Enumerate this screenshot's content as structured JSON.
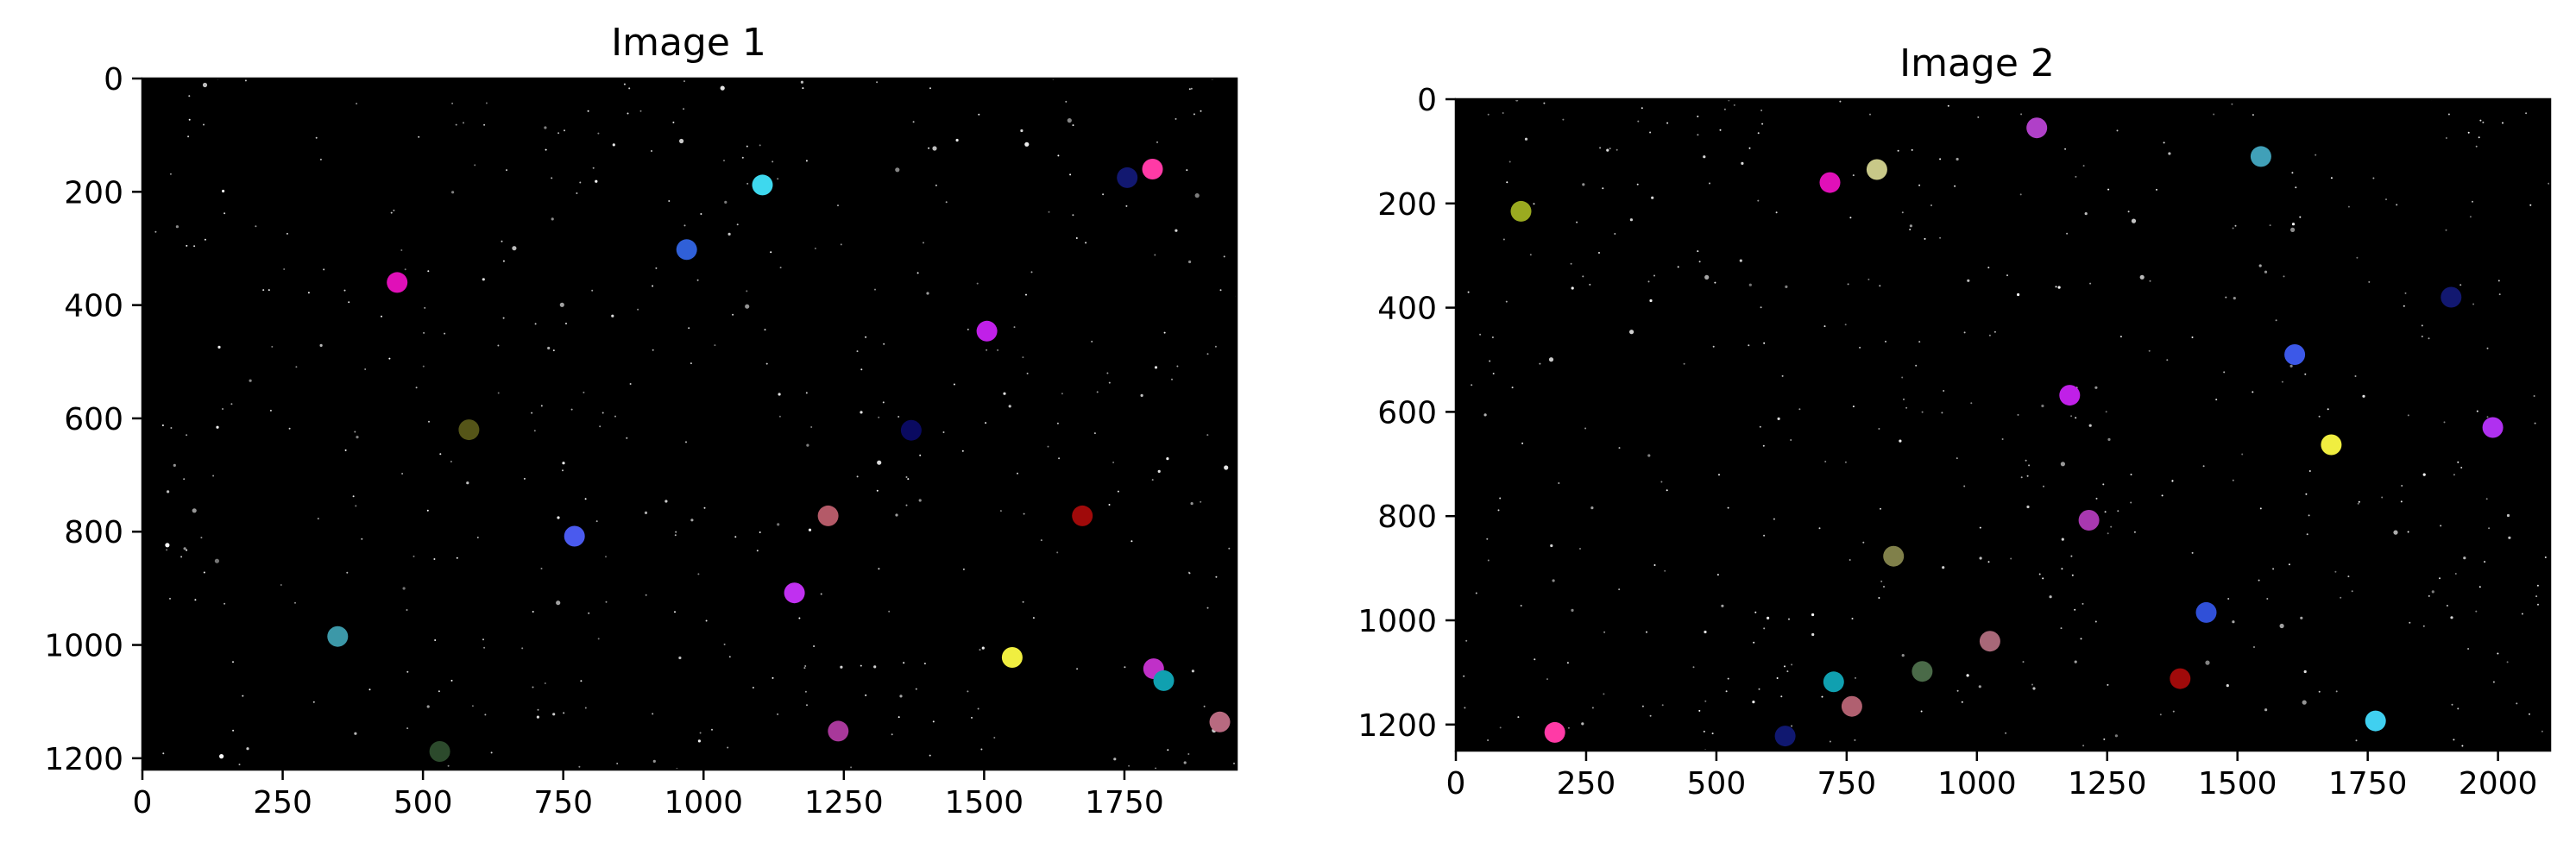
{
  "chart_data": [
    {
      "type": "scatter",
      "title": "Image 1",
      "background": "#000000",
      "xlim": [
        0,
        1950
      ],
      "ylim": [
        1220,
        0
      ],
      "xticks": [
        0,
        250,
        500,
        750,
        1000,
        1250,
        1500,
        1750
      ],
      "yticks": [
        0,
        200,
        400,
        600,
        800,
        1000,
        1200
      ],
      "star_seed": 11,
      "star_count": 420,
      "points": [
        {
          "x": 454,
          "y": 360,
          "color": "#e010b8"
        },
        {
          "x": 1105,
          "y": 188,
          "color": "#3ed8ee"
        },
        {
          "x": 970,
          "y": 302,
          "color": "#3060d8"
        },
        {
          "x": 1755,
          "y": 175,
          "color": "#121870"
        },
        {
          "x": 1800,
          "y": 160,
          "color": "#ff3aa6"
        },
        {
          "x": 1505,
          "y": 446,
          "color": "#c020e8"
        },
        {
          "x": 582,
          "y": 620,
          "color": "#555518"
        },
        {
          "x": 1370,
          "y": 621,
          "color": "#0a0a60"
        },
        {
          "x": 770,
          "y": 808,
          "color": "#4a5aee"
        },
        {
          "x": 1222,
          "y": 772,
          "color": "#b45a68"
        },
        {
          "x": 1675,
          "y": 772,
          "color": "#a00a0a"
        },
        {
          "x": 1162,
          "y": 908,
          "color": "#c030f0"
        },
        {
          "x": 348,
          "y": 985,
          "color": "#3c98a8"
        },
        {
          "x": 1550,
          "y": 1022,
          "color": "#f0ee40"
        },
        {
          "x": 1802,
          "y": 1042,
          "color": "#c030c8"
        },
        {
          "x": 1820,
          "y": 1063,
          "color": "#10a0b0"
        },
        {
          "x": 1240,
          "y": 1152,
          "color": "#a8389a"
        },
        {
          "x": 1920,
          "y": 1136,
          "color": "#b86a80"
        },
        {
          "x": 530,
          "y": 1188,
          "color": "#2c4a2c"
        }
      ]
    },
    {
      "type": "scatter",
      "title": "Image 2",
      "background": "#000000",
      "xlim": [
        0,
        2100
      ],
      "ylim": [
        1250,
        0
      ],
      "xticks": [
        0,
        250,
        500,
        750,
        1000,
        1250,
        1500,
        1750,
        2000
      ],
      "yticks": [
        0,
        200,
        400,
        600,
        800,
        1000,
        1200
      ],
      "star_seed": 29,
      "star_count": 440,
      "points": [
        {
          "x": 1115,
          "y": 55,
          "color": "#b040c8"
        },
        {
          "x": 808,
          "y": 135,
          "color": "#c8c888"
        },
        {
          "x": 718,
          "y": 160,
          "color": "#e010b8"
        },
        {
          "x": 1545,
          "y": 110,
          "color": "#40a0b8"
        },
        {
          "x": 125,
          "y": 215,
          "color": "#9aaa20"
        },
        {
          "x": 1910,
          "y": 380,
          "color": "#121870"
        },
        {
          "x": 1610,
          "y": 490,
          "color": "#3c58e8"
        },
        {
          "x": 1178,
          "y": 568,
          "color": "#c020e8"
        },
        {
          "x": 1990,
          "y": 630,
          "color": "#b030f0"
        },
        {
          "x": 1680,
          "y": 663,
          "color": "#f0ee40"
        },
        {
          "x": 1215,
          "y": 808,
          "color": "#a838b0"
        },
        {
          "x": 840,
          "y": 877,
          "color": "#80804a"
        },
        {
          "x": 1440,
          "y": 985,
          "color": "#3050d8"
        },
        {
          "x": 1025,
          "y": 1040,
          "color": "#a86878"
        },
        {
          "x": 895,
          "y": 1098,
          "color": "#4a6a48"
        },
        {
          "x": 725,
          "y": 1118,
          "color": "#10a0b0"
        },
        {
          "x": 1390,
          "y": 1112,
          "color": "#a00a0a"
        },
        {
          "x": 760,
          "y": 1165,
          "color": "#b06070"
        },
        {
          "x": 1765,
          "y": 1193,
          "color": "#40d0f0"
        },
        {
          "x": 190,
          "y": 1215,
          "color": "#ff3aa6"
        },
        {
          "x": 632,
          "y": 1222,
          "color": "#101870"
        }
      ]
    }
  ]
}
